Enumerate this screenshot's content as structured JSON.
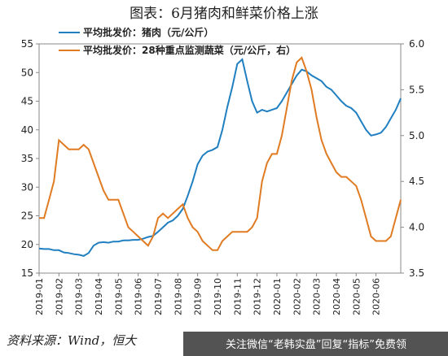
{
  "chart_data": {
    "type": "line",
    "title": "图表：6月猪肉和鲜菜价格上涨",
    "source": "资料来源：Wind，恒大",
    "watermark": "关注微信“老韩实盘”回复“指标”免费领",
    "categories": [
      "2019-01",
      null,
      null,
      null,
      "2019-02",
      null,
      null,
      null,
      "2019-03",
      null,
      null,
      null,
      "2019-04",
      null,
      null,
      null,
      "2019-05",
      null,
      null,
      null,
      "2019-06",
      null,
      null,
      null,
      "2019-07",
      null,
      null,
      null,
      "2019-08",
      null,
      null,
      null,
      "2019-09",
      null,
      null,
      null,
      "2019-10",
      null,
      null,
      null,
      "2019-11",
      null,
      null,
      null,
      "2019-12",
      null,
      null,
      null,
      "2020-01",
      null,
      null,
      null,
      "2020-02",
      null,
      null,
      null,
      "2020-03",
      null,
      null,
      null,
      "2020-04",
      null,
      null,
      null,
      "2020-05",
      null,
      null,
      null,
      "2020-06",
      null,
      null,
      null,
      null,
      null
    ],
    "series": [
      {
        "name": "平均批发价：猪肉（元/公斤）",
        "color": "#1f7fc0",
        "values": [
          19.3,
          19.2,
          19.2,
          19.0,
          19.0,
          18.6,
          18.5,
          18.3,
          18.2,
          18.0,
          18.5,
          19.8,
          20.3,
          20.4,
          20.3,
          20.5,
          20.5,
          20.7,
          20.7,
          20.8,
          20.8,
          21.0,
          21.3,
          21.5,
          22.2,
          23.0,
          23.8,
          24.2,
          25.0,
          26.2,
          28.5,
          31.0,
          34.0,
          35.5,
          36.2,
          36.5,
          37.0,
          40.0,
          44.0,
          47.5,
          51.5,
          52.3,
          48.5,
          45.0,
          43.0,
          43.5,
          43.2,
          43.5,
          43.8,
          45.0,
          46.5,
          48.0,
          49.5,
          50.5,
          50.2,
          49.5,
          49.0,
          48.5,
          47.5,
          47.0,
          46.0,
          45.0,
          44.2,
          43.8,
          43.0,
          41.5,
          40.0,
          39.0,
          39.2,
          39.5,
          40.5,
          42.0,
          43.5,
          45.5
        ]
      },
      {
        "name": "平均批发价：28种重点监测蔬菜（元/公斤，右）",
        "color": "#e07b22",
        "axis": "y2",
        "values": [
          4.1,
          4.1,
          4.3,
          4.5,
          4.95,
          4.9,
          4.85,
          4.85,
          4.85,
          4.9,
          4.85,
          4.7,
          4.55,
          4.4,
          4.3,
          4.3,
          4.3,
          4.15,
          4.0,
          3.95,
          3.9,
          3.85,
          3.8,
          3.9,
          4.1,
          4.15,
          4.1,
          4.15,
          4.2,
          4.25,
          4.1,
          4.0,
          3.95,
          3.85,
          3.8,
          3.75,
          3.75,
          3.85,
          3.9,
          3.95,
          3.95,
          3.95,
          3.95,
          4.0,
          4.1,
          4.5,
          4.7,
          4.8,
          4.8,
          5.0,
          5.3,
          5.6,
          5.8,
          5.85,
          5.7,
          5.5,
          5.2,
          4.95,
          4.8,
          4.7,
          4.6,
          4.55,
          4.55,
          4.5,
          4.45,
          4.3,
          4.1,
          3.9,
          3.85,
          3.85,
          3.85,
          3.9,
          4.1,
          4.3
        ]
      }
    ],
    "ylim": [
      15,
      55
    ],
    "yticks": [
      15,
      20,
      25,
      30,
      35,
      40,
      45,
      50,
      55
    ],
    "y2lim": [
      3.5,
      6
    ],
    "y2ticks": [
      3.5,
      {
        "value": 4,
        "label": "4.0"
      },
      4.5,
      {
        "value": 5,
        "label": "5.0"
      },
      5.5,
      {
        "value": 6,
        "label": "6.0"
      }
    ]
  }
}
